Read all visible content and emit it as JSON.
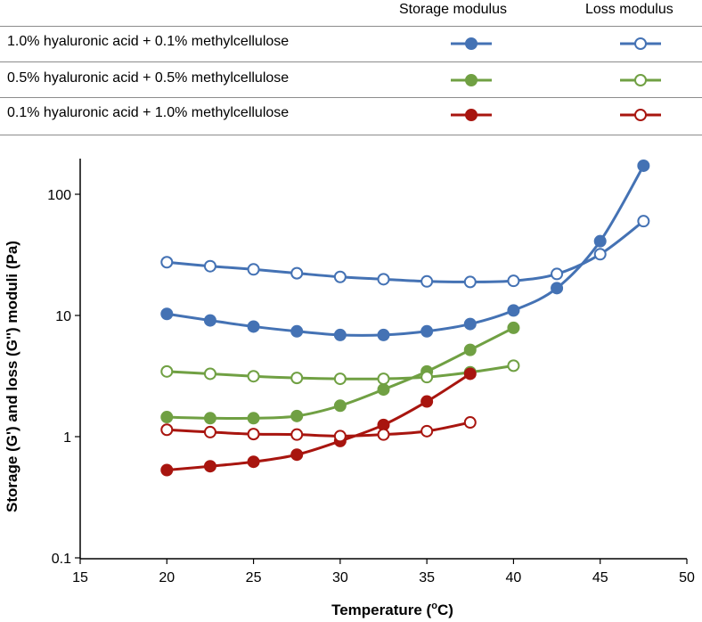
{
  "legend": {
    "header_storage": "Storage modulus",
    "header_loss": "Loss modulus",
    "rows": [
      {
        "label": "1.0% hyaluronic acid + 0.1% methylcellulose",
        "color": "#4472b4"
      },
      {
        "label": "0.5% hyaluronic acid + 0.5% methylcellulose",
        "color": "#70a043"
      },
      {
        "label": "0.1% hyaluronic acid + 1.0% methylcellulose",
        "color": "#a8150f"
      }
    ]
  },
  "chart_data": {
    "type": "line",
    "xlabel": "Temperature (",
    "xlabel_sup": "o",
    "xlabel_suffix": "C)",
    "ylabel": "Storage (G') and loss (G'') moduli (Pa)",
    "xlim": [
      15,
      50
    ],
    "ylim": [
      0.1,
      200
    ],
    "yscale": "log",
    "x_ticks": [
      "15",
      "20",
      "25",
      "30",
      "35",
      "40",
      "45",
      "50"
    ],
    "x_tick_values": [
      15,
      20,
      25,
      30,
      35,
      40,
      45,
      50
    ],
    "y_ticks": [
      "0.1",
      "1",
      "10",
      "100"
    ],
    "y_tick_values": [
      0.1,
      1,
      10,
      100
    ],
    "series": [
      {
        "name": "1.0% hyaluronic acid + 0.1% methylcellulose",
        "modulus": "Storage modulus",
        "filled": true,
        "color": "#4472b4",
        "x": [
          20,
          22.5,
          25,
          27.5,
          30,
          32.5,
          35,
          37.5,
          40,
          42.5,
          45,
          47.5
        ],
        "values": [
          10.3,
          9.1,
          8.1,
          7.4,
          6.9,
          6.9,
          7.4,
          8.5,
          11,
          16.8,
          41,
          172
        ]
      },
      {
        "name": "1.0% hyaluronic acid + 0.1% methylcellulose",
        "modulus": "Loss modulus",
        "filled": false,
        "color": "#4472b4",
        "x": [
          20,
          22.5,
          25,
          27.5,
          30,
          32.5,
          35,
          37.5,
          40,
          42.5,
          45,
          47.5
        ],
        "values": [
          27.5,
          25.5,
          24,
          22.3,
          20.8,
          19.9,
          19.1,
          18.9,
          19.3,
          22,
          32,
          60
        ]
      },
      {
        "name": "0.5% hyaluronic acid + 0.5% methylcellulose",
        "modulus": "Storage modulus",
        "filled": true,
        "color": "#70a043",
        "x": [
          20,
          22.5,
          25,
          27.5,
          30,
          32.5,
          35,
          37.5,
          40
        ],
        "values": [
          1.45,
          1.42,
          1.42,
          1.48,
          1.8,
          2.45,
          3.45,
          5.2,
          7.9
        ]
      },
      {
        "name": "0.5% hyaluronic acid + 0.5% methylcellulose",
        "modulus": "Loss modulus",
        "filled": false,
        "color": "#70a043",
        "x": [
          20,
          22.5,
          25,
          27.5,
          30,
          32.5,
          35,
          37.5,
          40
        ],
        "values": [
          3.45,
          3.3,
          3.15,
          3.05,
          3.0,
          3.0,
          3.1,
          3.4,
          3.85
        ]
      },
      {
        "name": "0.1% hyaluronic acid + 1.0% methylcellulose",
        "modulus": "Storage modulus",
        "filled": true,
        "color": "#a8150f",
        "x": [
          20,
          22.5,
          25,
          27.5,
          30,
          32.5,
          35,
          37.5
        ],
        "values": [
          0.53,
          0.57,
          0.62,
          0.71,
          0.92,
          1.25,
          1.95,
          3.3
        ]
      },
      {
        "name": "0.1% hyaluronic acid + 1.0% methylcellulose",
        "modulus": "Loss modulus",
        "filled": false,
        "color": "#a8150f",
        "x": [
          20,
          22.5,
          25,
          27.5,
          30,
          32.5,
          35,
          37.5
        ],
        "values": [
          1.14,
          1.09,
          1.05,
          1.04,
          1.01,
          1.04,
          1.11,
          1.31
        ]
      }
    ]
  }
}
